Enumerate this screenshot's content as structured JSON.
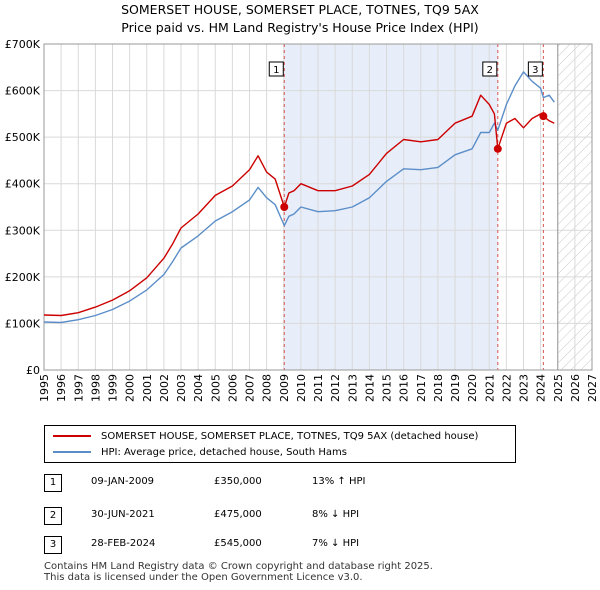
{
  "chart_data": {
    "type": "line",
    "title": "SOMERSET HOUSE, SOMERSET PLACE, TOTNES, TQ9 5AX",
    "subtitle": "Price paid vs. HM Land Registry's House Price Index (HPI)",
    "xlabel": "",
    "ylabel": "",
    "xlim": [
      1995,
      2027
    ],
    "ylim": [
      0,
      700000
    ],
    "x_ticks": [
      "1995",
      "1996",
      "1997",
      "1998",
      "1999",
      "2000",
      "2001",
      "2002",
      "2003",
      "2004",
      "2005",
      "2006",
      "2007",
      "2008",
      "2009",
      "2010",
      "2011",
      "2012",
      "2013",
      "2014",
      "2015",
      "2016",
      "2017",
      "2018",
      "2019",
      "2020",
      "2021",
      "2022",
      "2023",
      "2024",
      "2025",
      "2026",
      "2027"
    ],
    "y_ticks": [
      {
        "value": 0,
        "label": "£0"
      },
      {
        "value": 100000,
        "label": "£100K"
      },
      {
        "value": 200000,
        "label": "£200K"
      },
      {
        "value": 300000,
        "label": "£300K"
      },
      {
        "value": 400000,
        "label": "£400K"
      },
      {
        "value": 500000,
        "label": "£500K"
      },
      {
        "value": 600000,
        "label": "£600K"
      },
      {
        "value": 700000,
        "label": "£700K"
      }
    ],
    "grid": true,
    "forecast_start": 2025.0,
    "shaded_period": [
      2009.03,
      2021.5
    ],
    "series": [
      {
        "name": "SOMERSET HOUSE, SOMERSET PLACE, TOTNES, TQ9 5AX (detached house)",
        "color": "#cc0000",
        "x": [
          1995,
          1996,
          1997,
          1998,
          1999,
          2000,
          2001,
          2002,
          2002.5,
          2003,
          2004,
          2005,
          2006,
          2007,
          2007.5,
          2008,
          2008.5,
          2009.03,
          2009.3,
          2009.6,
          2010,
          2011,
          2012,
          2013,
          2014,
          2015,
          2016,
          2017,
          2018,
          2019,
          2020,
          2020.5,
          2021,
          2021.3,
          2021.5,
          2022,
          2022.5,
          2023,
          2023.5,
          2024,
          2024.16,
          2024.5,
          2024.8
        ],
        "y": [
          118000,
          117000,
          123000,
          135000,
          150000,
          170000,
          198000,
          240000,
          270000,
          305000,
          335000,
          375000,
          395000,
          430000,
          460000,
          425000,
          410000,
          350000,
          380000,
          385000,
          400000,
          385000,
          385000,
          395000,
          420000,
          465000,
          495000,
          490000,
          495000,
          530000,
          545000,
          590000,
          570000,
          550000,
          475000,
          530000,
          540000,
          520000,
          540000,
          550000,
          545000,
          535000,
          530000
        ]
      },
      {
        "name": "HPI: Average price, detached house, South Hams",
        "color": "#5b8ec9",
        "x": [
          1995,
          1996,
          1997,
          1998,
          1999,
          2000,
          2001,
          2002,
          2002.5,
          2003,
          2004,
          2005,
          2006,
          2007,
          2007.5,
          2008,
          2008.5,
          2009.03,
          2009.3,
          2009.6,
          2010,
          2011,
          2012,
          2013,
          2014,
          2015,
          2016,
          2017,
          2018,
          2019,
          2020,
          2020.5,
          2021,
          2021.3,
          2021.5,
          2022,
          2022.5,
          2023,
          2023.5,
          2024,
          2024.16,
          2024.5,
          2024.8
        ],
        "y": [
          103000,
          102000,
          108000,
          117000,
          130000,
          148000,
          172000,
          205000,
          232000,
          262000,
          288000,
          320000,
          340000,
          365000,
          392000,
          370000,
          355000,
          310000,
          330000,
          335000,
          350000,
          340000,
          342000,
          350000,
          370000,
          405000,
          432000,
          430000,
          435000,
          462000,
          475000,
          510000,
          510000,
          530000,
          515000,
          570000,
          610000,
          640000,
          620000,
          605000,
          585000,
          590000,
          575000
        ]
      }
    ],
    "sales": [
      {
        "label": "1",
        "x": 2009.03,
        "price": 350000
      },
      {
        "label": "2",
        "x": 2021.5,
        "price": 475000
      },
      {
        "label": "3",
        "x": 2024.16,
        "price": 545000
      }
    ]
  },
  "legend": {
    "property": "SOMERSET HOUSE, SOMERSET PLACE, TOTNES, TQ9 5AX (detached house)",
    "hpi": "HPI: Average price, detached house, South Hams"
  },
  "sales_table": [
    {
      "label": "1",
      "date": "09-JAN-2009",
      "price": "£350,000",
      "hpi": "13% ↑ HPI"
    },
    {
      "label": "2",
      "date": "30-JUN-2021",
      "price": "£475,000",
      "hpi": "8% ↓ HPI"
    },
    {
      "label": "3",
      "date": "28-FEB-2024",
      "price": "£545,000",
      "hpi": "7% ↓ HPI"
    }
  ],
  "footer": {
    "line1": "Contains HM Land Registry data © Crown copyright and database right 2025.",
    "line2": "This data is licensed under the Open Government Licence v3.0."
  },
  "colors": {
    "property": "#cc0000",
    "hpi": "#5b8ec9",
    "shade": "#e8eef9",
    "grid": "#d9d9d9"
  }
}
